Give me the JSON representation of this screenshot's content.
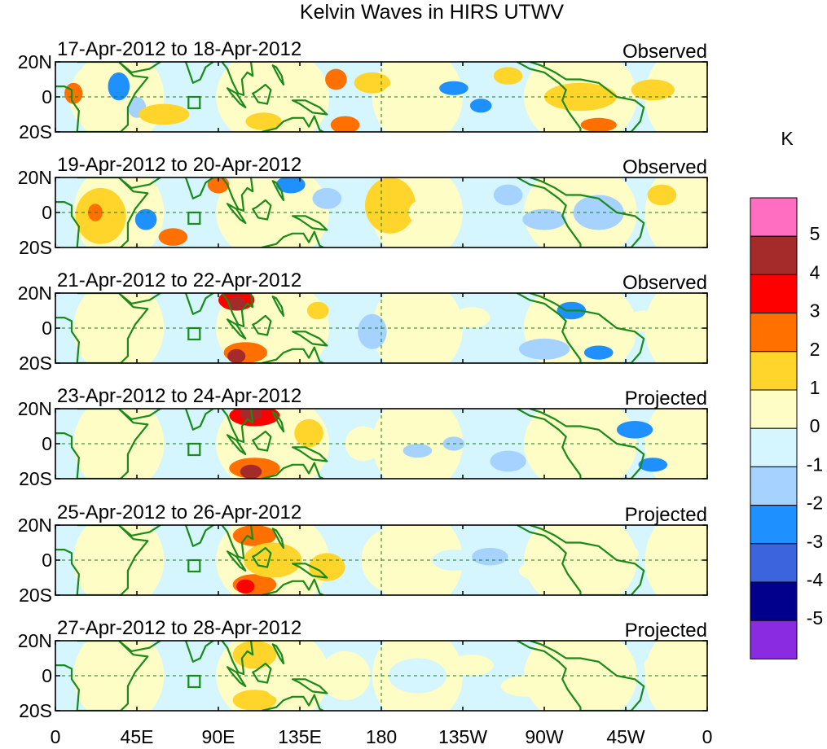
{
  "title": "Kelvin Waves in HIRS UTWV",
  "lat_labels": [
    "20N",
    "0",
    "20S"
  ],
  "lon_labels": [
    "0",
    "45E",
    "90E",
    "135E",
    "180",
    "135W",
    "90W",
    "45W",
    "0"
  ],
  "panels": [
    {
      "date": "17-Apr-2012 to 18-Apr-2012",
      "status": "Observed"
    },
    {
      "date": "19-Apr-2012 to 20-Apr-2012",
      "status": "Observed"
    },
    {
      "date": "21-Apr-2012 to 22-Apr-2012",
      "status": "Observed"
    },
    {
      "date": "23-Apr-2012 to 24-Apr-2012",
      "status": "Projected"
    },
    {
      "date": "25-Apr-2012 to 26-Apr-2012",
      "status": "Projected"
    },
    {
      "date": "27-Apr-2012 to 28-Apr-2012",
      "status": "Projected"
    }
  ],
  "colorbar": {
    "unit": "K",
    "ticks": [
      "5",
      "4",
      "3",
      "2",
      "1",
      "0",
      "-1",
      "-2",
      "-3",
      "-4",
      "-5"
    ],
    "colors": [
      "#ff6ec0",
      "#a52a2a",
      "#ff0000",
      "#ff7000",
      "#ffd52c",
      "#fffdc6",
      "#d5f5ff",
      "#a5d2ff",
      "#1e90ff",
      "#3c64dc",
      "#00008c",
      "#8a2be2"
    ]
  }
}
